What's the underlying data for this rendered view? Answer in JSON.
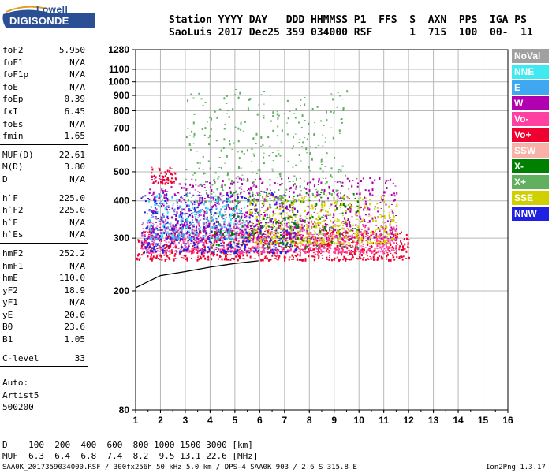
{
  "logo": {
    "brand": "Lowell",
    "product": "DIGISONDE"
  },
  "header": {
    "line1": "Station YYYY DAY   DDD HHMMSS P1  FFS  S  AXN  PPS  IGA PS",
    "line2": "SaoLuis 2017 Dec25 359 034000 RSF      1  715  100  00-  11"
  },
  "params": [
    {
      "name": "foF2",
      "value": "5.950"
    },
    {
      "name": "foF1",
      "value": "N/A"
    },
    {
      "name": "foF1p",
      "value": "N/A"
    },
    {
      "name": "foE",
      "value": "N/A"
    },
    {
      "name": "foEp",
      "value": "0.39"
    },
    {
      "name": "fxI",
      "value": "6.45"
    },
    {
      "name": "foEs",
      "value": "N/A"
    },
    {
      "name": "fmin",
      "value": "1.65"
    },
    {
      "name": "MUF(D)",
      "value": "22.61",
      "sep": true
    },
    {
      "name": "M(D)",
      "value": "3.80"
    },
    {
      "name": "D",
      "value": "N/A"
    },
    {
      "name": "h`F",
      "value": "225.0",
      "sep": true
    },
    {
      "name": "h`F2",
      "value": "225.0"
    },
    {
      "name": "h`E",
      "value": "N/A"
    },
    {
      "name": "h`Es",
      "value": "N/A"
    },
    {
      "name": "hmF2",
      "value": "252.2",
      "sep": true
    },
    {
      "name": "hmF1",
      "value": "N/A"
    },
    {
      "name": "hmE",
      "value": "110.0"
    },
    {
      "name": "yF2",
      "value": "18.9"
    },
    {
      "name": "yF1",
      "value": "N/A"
    },
    {
      "name": "yE",
      "value": "20.0"
    },
    {
      "name": "B0",
      "value": "23.6"
    },
    {
      "name": "B1",
      "value": "1.05"
    },
    {
      "name": "C-level",
      "value": "33",
      "sep": true
    }
  ],
  "autoscaling": {
    "line1": "Auto:",
    "line2": "Artist5",
    "line3": "500200"
  },
  "legend": [
    {
      "label": "NoVal",
      "color": "#a0a0a0"
    },
    {
      "label": "NNE",
      "color": "#40e8f0"
    },
    {
      "label": "E",
      "color": "#40a8f0"
    },
    {
      "label": "W",
      "color": "#b000b0"
    },
    {
      "label": "Vo-",
      "color": "#ff40a0"
    },
    {
      "label": "Vo+",
      "color": "#f00030"
    },
    {
      "label": "SSW",
      "color": "#f8b0a8"
    },
    {
      "label": "X-",
      "color": "#008000"
    },
    {
      "label": "X+",
      "color": "#60b060"
    },
    {
      "label": "SSE",
      "color": "#d0d000"
    },
    {
      "label": "NNW",
      "color": "#2020e0"
    }
  ],
  "chart_data": {
    "type": "scatter",
    "title": "",
    "xlabel": "",
    "ylabel": "",
    "xlim": [
      1,
      16
    ],
    "ylim": [
      80,
      1280
    ],
    "y_scale": "log",
    "grid": true,
    "x_ticks": [
      "1",
      "2",
      "3",
      "4",
      "5",
      "6",
      "7",
      "8",
      "9",
      "10",
      "11",
      "12",
      "13",
      "14",
      "15",
      "16"
    ],
    "y_ticks": [
      "80",
      "200",
      "300",
      "400",
      "500",
      "600",
      "700",
      "800",
      "900",
      "1000",
      "1100",
      "1280"
    ],
    "profile_line": {
      "x": [
        1.0,
        2.0,
        3.0,
        4.0,
        5.0,
        5.95
      ],
      "y": [
        205,
        225,
        232,
        240,
        247,
        252
      ]
    },
    "clusters": [
      {
        "name": "Vo+",
        "color": "#f00030",
        "x_range": [
          1.0,
          12.0
        ],
        "y_range": [
          255,
          320
        ]
      },
      {
        "name": "Vo-",
        "color": "#ff40a0",
        "x_range": [
          1.2,
          11.5
        ],
        "y_range": [
          270,
          340
        ]
      },
      {
        "name": "NNW",
        "color": "#2020e0",
        "x_range": [
          1.2,
          7.5
        ],
        "y_range": [
          270,
          430
        ]
      },
      {
        "name": "W",
        "color": "#b000b0",
        "x_range": [
          1.5,
          11.5
        ],
        "y_range": [
          300,
          480
        ]
      },
      {
        "name": "SSE",
        "color": "#d0d000",
        "x_range": [
          5.5,
          11.5
        ],
        "y_range": [
          290,
          420
        ]
      },
      {
        "name": "X+",
        "color": "#60b060",
        "x_range": [
          3.0,
          9.5
        ],
        "y_range": [
          400,
          950
        ]
      },
      {
        "name": "X-",
        "color": "#008000",
        "x_range": [
          4.0,
          10.0
        ],
        "y_range": [
          280,
          430
        ]
      },
      {
        "name": "NNE",
        "color": "#40e8f0",
        "x_range": [
          1.5,
          5.5
        ],
        "y_range": [
          300,
          420
        ]
      },
      {
        "name": "E",
        "color": "#40a8f0",
        "x_range": [
          1.5,
          5.0
        ],
        "y_range": [
          300,
          400
        ]
      },
      {
        "name": "Vo+ (2nd hop)",
        "color": "#f00030",
        "x_range": [
          1.6,
          2.6
        ],
        "y_range": [
          460,
          520
        ]
      }
    ]
  },
  "bottom_table": {
    "dist_line": "D    100  200  400  600  800 1000 1500 3000 [km]",
    "muf_line": "MUF  6.3  6.4  6.8  7.4  8.2  9.5 13.1 22.6 [MHz]"
  },
  "footer": {
    "left": "SAA0K_2017359034000.RSF / 300fx256h 50 kHz 5.0 km / DPS-4 SAA0K 903 / 2.6 S 315.8 E",
    "right": "Ion2Png 1.3.17"
  }
}
